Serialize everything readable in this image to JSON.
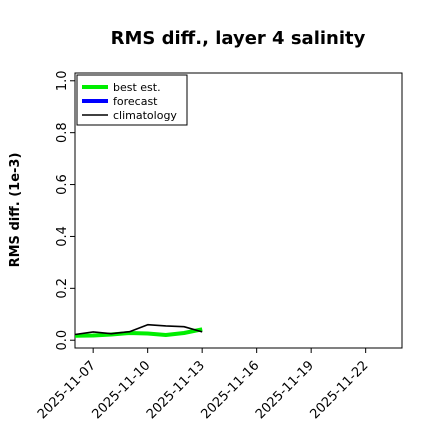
{
  "chart_data": {
    "type": "line",
    "title": "RMS diff., layer 4 salinity",
    "xlabel": "",
    "ylabel": "RMS diff. (1e-3)",
    "ylim": [
      -0.03,
      1.03
    ],
    "xlim": [
      "2025-11-06",
      "2025-11-24"
    ],
    "yticks": [
      0.0,
      0.2,
      0.4,
      0.6,
      0.8,
      1.0
    ],
    "ytick_labels": [
      "0.0",
      "0.2",
      "0.4",
      "0.6",
      "0.8",
      "1.0"
    ],
    "xticks": [
      "2025-11-07",
      "2025-11-10",
      "2025-11-13",
      "2025-11-16",
      "2025-11-19",
      "2025-11-22"
    ],
    "highlight_tick": "2025-11-13",
    "highlight_color": "#228b22",
    "grid": false,
    "legend_position": "top-left",
    "series": [
      {
        "name": "best est.",
        "color": "#00ee00",
        "x": [
          "2025-11-06",
          "2025-11-07",
          "2025-11-08",
          "2025-11-09",
          "2025-11-10",
          "2025-11-11",
          "2025-11-12",
          "2025-11-13"
        ],
        "values": [
          0.017,
          0.018,
          0.022,
          0.028,
          0.026,
          0.02,
          0.028,
          0.042
        ]
      },
      {
        "name": "forecast",
        "color": "#0000ff",
        "x": [],
        "values": []
      },
      {
        "name": "climatology",
        "color": "#000000",
        "x": [
          "2025-11-06",
          "2025-11-07",
          "2025-11-08",
          "2025-11-09",
          "2025-11-10",
          "2025-11-11",
          "2025-11-12",
          "2025-11-13"
        ],
        "values": [
          0.022,
          0.032,
          0.025,
          0.033,
          0.06,
          0.055,
          0.052,
          0.032
        ]
      }
    ]
  }
}
